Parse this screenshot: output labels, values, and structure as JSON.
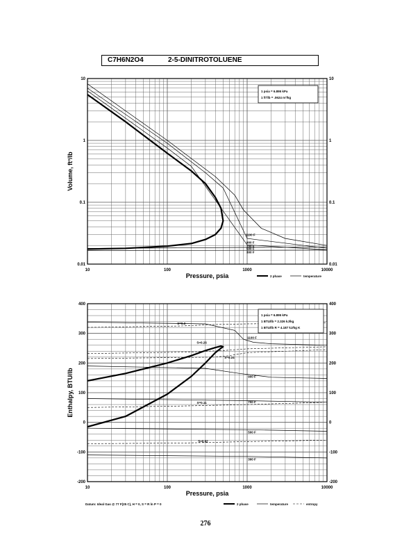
{
  "header": {
    "formula": "C7H6N2O4",
    "name": "2-5-DINITROTOLUENE"
  },
  "page_number": "276",
  "chart_data": [
    {
      "type": "line",
      "xscale": "log",
      "yscale": "log",
      "xlim": [
        10,
        10000
      ],
      "ylim": [
        0.01,
        10
      ],
      "xlabel": "Pressure,  psia",
      "ylabel": "Volume, ft^3/lb",
      "xticks": [
        "10",
        "100",
        "1000",
        "10000"
      ],
      "yticks_left": [
        "10",
        "1",
        "0.1",
        "0.01"
      ],
      "yticks_right": [
        "10",
        "1",
        "0.1",
        "0.01"
      ],
      "info_box": [
        "1 psia = 6.895 kPa",
        "1 ft^3/lb  =  .0624 m^3/kg"
      ],
      "legend": {
        "two_phase": "2 phase",
        "temperature": "temperature"
      },
      "two_phase": {
        "liquid": {
          "x": [
            10,
            30,
            100,
            200,
            300,
            400,
            470,
            500
          ],
          "y": [
            0.0175,
            0.018,
            0.0195,
            0.0215,
            0.025,
            0.03,
            0.038,
            0.05
          ]
        },
        "vapor": {
          "x": [
            10,
            30,
            100,
            200,
            300,
            400,
            470,
            500
          ],
          "y": [
            5.5,
            2.0,
            0.62,
            0.32,
            0.2,
            0.12,
            0.08,
            0.05
          ]
        }
      },
      "isotherms": [
        {
          "label": "1100 F",
          "x": [
            10,
            100,
            400,
            700,
            900,
            1500,
            3000,
            10000
          ],
          "y": [
            8.2,
            1.0,
            0.26,
            0.13,
            0.075,
            0.038,
            0.026,
            0.02
          ]
        },
        {
          "label": "900 F",
          "x": [
            10,
            100,
            300,
            500,
            1000,
            10000
          ],
          "y": [
            7.0,
            0.9,
            0.3,
            0.17,
            0.026,
            0.018
          ]
        },
        {
          "label": "700 F",
          "x": [
            10,
            100,
            200,
            1000,
            10000
          ],
          "y": [
            6.3,
            0.75,
            0.38,
            0.0205,
            0.017
          ]
        },
        {
          "label": "500 F",
          "x": [
            10,
            1000,
            10000
          ],
          "y": [
            0.0179,
            0.0186,
            0.0188
          ]
        },
        {
          "label": "300 F",
          "x": [
            10,
            1000,
            10000
          ],
          "y": [
            0.0166,
            0.0167,
            0.0168
          ]
        }
      ]
    },
    {
      "type": "line",
      "xscale": "log",
      "yscale": "linear",
      "xlim": [
        10,
        10000
      ],
      "ylim": [
        -200,
        400
      ],
      "xlabel": "Pressure,  psia",
      "ylabel": "Enthalpy, BTU/lb",
      "xticks": [
        "10",
        "100",
        "1000",
        "10000"
      ],
      "yticks_left": [
        "400",
        "300",
        "200",
        "100",
        "0",
        "-100",
        "-200"
      ],
      "yticks_right": [
        "400",
        "300",
        "200",
        "100",
        "0",
        "-100",
        "-200"
      ],
      "info_box": [
        "1 psia = 6.895 kPa",
        "1 BTU/lb = 2.326 kJ/kg",
        "1 BTU/lb R = 4.187 kJ/kg K"
      ],
      "datum": "Datum: Ideal Gas @ 77 F(25 C),  H = 0,  S = R ln P = 0",
      "legend": {
        "two_phase": "2 phase",
        "temperature": "temperature",
        "entropy": "entropy"
      },
      "two_phase": {
        "liquid": {
          "x": [
            10,
            30,
            100,
            200,
            300,
            400,
            470,
            500
          ],
          "y": [
            -15,
            20,
            95,
            155,
            200,
            235,
            250,
            255
          ]
        },
        "vapor": {
          "x": [
            10,
            30,
            100,
            200,
            300,
            400,
            470,
            500
          ],
          "y": [
            140,
            165,
            200,
            225,
            242,
            252,
            257,
            255
          ]
        }
      },
      "isotherms": [
        {
          "label": "1100 F",
          "x": [
            10,
            300,
            700,
            900,
            1200,
            2000,
            5000,
            10000
          ],
          "y": [
            338,
            332,
            310,
            280,
            270,
            265,
            262,
            260
          ]
        },
        {
          "label": "900 F",
          "x": [
            10,
            300,
            800,
            2000,
            10000
          ],
          "y": [
            190,
            182,
            165,
            152,
            148
          ]
        },
        {
          "label": "700 F",
          "x": [
            10,
            1000,
            10000
          ],
          "y": [
            80,
            73,
            68
          ]
        },
        {
          "label": "500 F",
          "x": [
            10,
            1000,
            10000
          ],
          "y": [
            -20,
            -25,
            -30
          ]
        },
        {
          "label": "300 F",
          "x": [
            10,
            1000,
            10000
          ],
          "y": [
            -110,
            -115,
            -120
          ]
        }
      ],
      "entropy_lines": [
        {
          "label": "S=0.3",
          "x": [
            10,
            150,
            400,
            1000,
            10000
          ],
          "y": [
            320,
            325,
            330,
            332,
            335
          ]
        },
        {
          "label": "S=0.26",
          "x": [
            10,
            200,
            500,
            1000,
            10000
          ],
          "y": [
            232,
            237,
            242,
            248,
            255
          ]
        },
        {
          "label": "S=0.24",
          "x": [
            10,
            400,
            600,
            1000,
            10000
          ],
          "y": [
            215,
            220,
            225,
            235,
            245
          ]
        },
        {
          "label": "S=0.11",
          "x": [
            10,
            150,
            1000,
            10000
          ],
          "y": [
            50,
            55,
            60,
            68
          ]
        },
        {
          "label": "S=0.02",
          "x": [
            10,
            150,
            1000,
            10000
          ],
          "y": [
            -72,
            -70,
            -65,
            -60
          ]
        }
      ]
    }
  ]
}
